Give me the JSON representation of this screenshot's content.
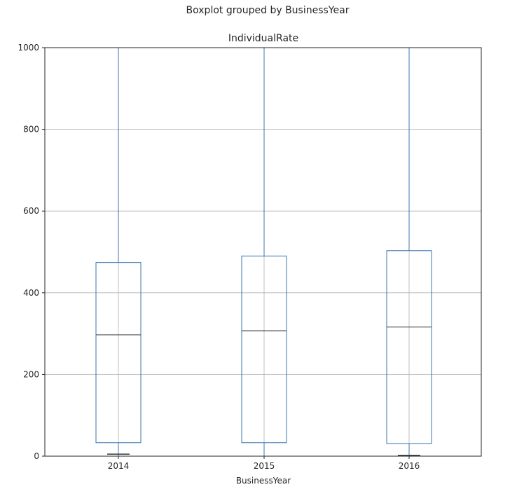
{
  "chart_data": {
    "type": "boxplot",
    "suptitle": "Boxplot grouped by BusinessYear",
    "title": "IndividualRate",
    "xlabel": "BusinessYear",
    "ylabel": "",
    "ylim": [
      0,
      1000
    ],
    "yticks": [
      0,
      200,
      400,
      600,
      800,
      1000
    ],
    "categories": [
      "2014",
      "2015",
      "2016"
    ],
    "boxes": [
      {
        "category": "2014",
        "whisker_low": 0,
        "q1": 33,
        "median": 297,
        "q3": 474,
        "whisker_high": 1000,
        "flier_low": 5
      },
      {
        "category": "2015",
        "whisker_low": 0,
        "q1": 33,
        "median": 307,
        "q3": 490,
        "whisker_high": 1000,
        "flier_low": null
      },
      {
        "category": "2016",
        "whisker_low": 0,
        "q1": 31,
        "median": 316,
        "q3": 503,
        "whisker_high": 1000,
        "flier_low": 2
      }
    ],
    "grid": true,
    "colors": {
      "box": "#3b75af",
      "median": "#3a3a3a",
      "grid": "#b0b0b0",
      "axis": "#262626"
    }
  }
}
